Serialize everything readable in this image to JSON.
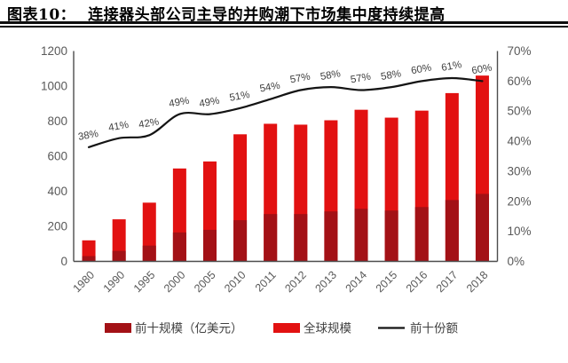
{
  "header": {
    "label": "图表10：",
    "title": "连接器头部公司主导的并购潮下市场集中度持续提高"
  },
  "colors": {
    "bar_global": "#e21111",
    "bar_top10": "#a31116",
    "share_line": "#141414",
    "axis_line": "#4d4d4d",
    "tick_text": "#595959",
    "data_label_text": "#3f3f3f",
    "title_text": "#000000",
    "background": "#ffffff"
  },
  "chart_data": {
    "type": "bar",
    "subtype": "bar+line combo, dual axis, overlaid bars",
    "title": "连接器头部公司主导的并购潮下市场集中度持续提高",
    "categories": [
      "1980",
      "1990",
      "1995",
      "2000",
      "2005",
      "2010",
      "2011",
      "2012",
      "2013",
      "2014",
      "2015",
      "2016",
      "2017",
      "2018"
    ],
    "series": [
      {
        "name": "前十规模（亿美元）",
        "type": "bar",
        "axis": "left",
        "color": "#a31116",
        "values": [
          30,
          60,
          90,
          165,
          180,
          235,
          270,
          270,
          285,
          300,
          290,
          310,
          350,
          385
        ]
      },
      {
        "name": "全球规模",
        "type": "bar",
        "axis": "left",
        "color": "#e21111",
        "values": [
          120,
          240,
          335,
          530,
          570,
          725,
          785,
          780,
          805,
          865,
          820,
          860,
          960,
          1060
        ]
      },
      {
        "name": "前十份额",
        "type": "line",
        "axis": "right",
        "color": "#141414",
        "values": [
          38,
          41,
          42,
          49,
          49,
          51,
          54,
          57,
          58,
          57,
          58,
          60,
          61,
          60
        ],
        "labels": [
          "38%",
          "41%",
          "42%",
          "49%",
          "49%",
          "51%",
          "54%",
          "57%",
          "58%",
          "57%",
          "58%",
          "60%",
          "61%",
          "60%"
        ]
      }
    ],
    "left_axis": {
      "min": 0,
      "max": 1200,
      "step": 200,
      "ticks": [
        "0",
        "200",
        "400",
        "600",
        "800",
        "1000",
        "1200"
      ]
    },
    "right_axis": {
      "min": 0,
      "max": 70,
      "step": 10,
      "ticks": [
        "0%",
        "10%",
        "20%",
        "30%",
        "40%",
        "50%",
        "60%",
        "70%"
      ]
    },
    "grid": false,
    "legend_position": "bottom"
  }
}
